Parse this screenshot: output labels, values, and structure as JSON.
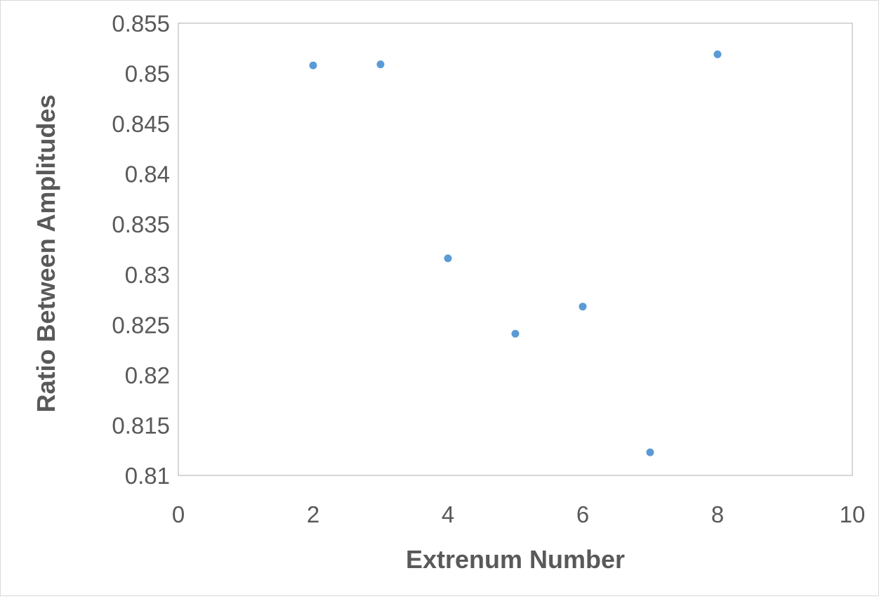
{
  "chart_data": {
    "type": "scatter",
    "title": "",
    "xlabel": "Extrenum Number",
    "ylabel": "Ratio Between Amplitudes",
    "xlim": [
      0,
      10
    ],
    "ylim": [
      0.81,
      0.855
    ],
    "xticks": [
      0,
      2,
      4,
      6,
      8,
      10
    ],
    "xtick_labels": [
      "0",
      "2",
      "4",
      "6",
      "8",
      "10"
    ],
    "yticks": [
      0.81,
      0.815,
      0.82,
      0.825,
      0.83,
      0.835,
      0.84,
      0.845,
      0.85,
      0.855
    ],
    "ytick_labels": [
      "0.81",
      "0.815",
      "0.82",
      "0.825",
      "0.83",
      "0.835",
      "0.84",
      "0.845",
      "0.85",
      "0.855"
    ],
    "grid": false,
    "legend": "none",
    "series": [
      {
        "x": [
          2,
          3,
          4,
          5,
          6,
          7,
          8
        ],
        "y": [
          0.8508,
          0.8509,
          0.8316,
          0.8241,
          0.8268,
          0.8123,
          0.8519
        ],
        "color": "#5b9bd5"
      }
    ]
  }
}
